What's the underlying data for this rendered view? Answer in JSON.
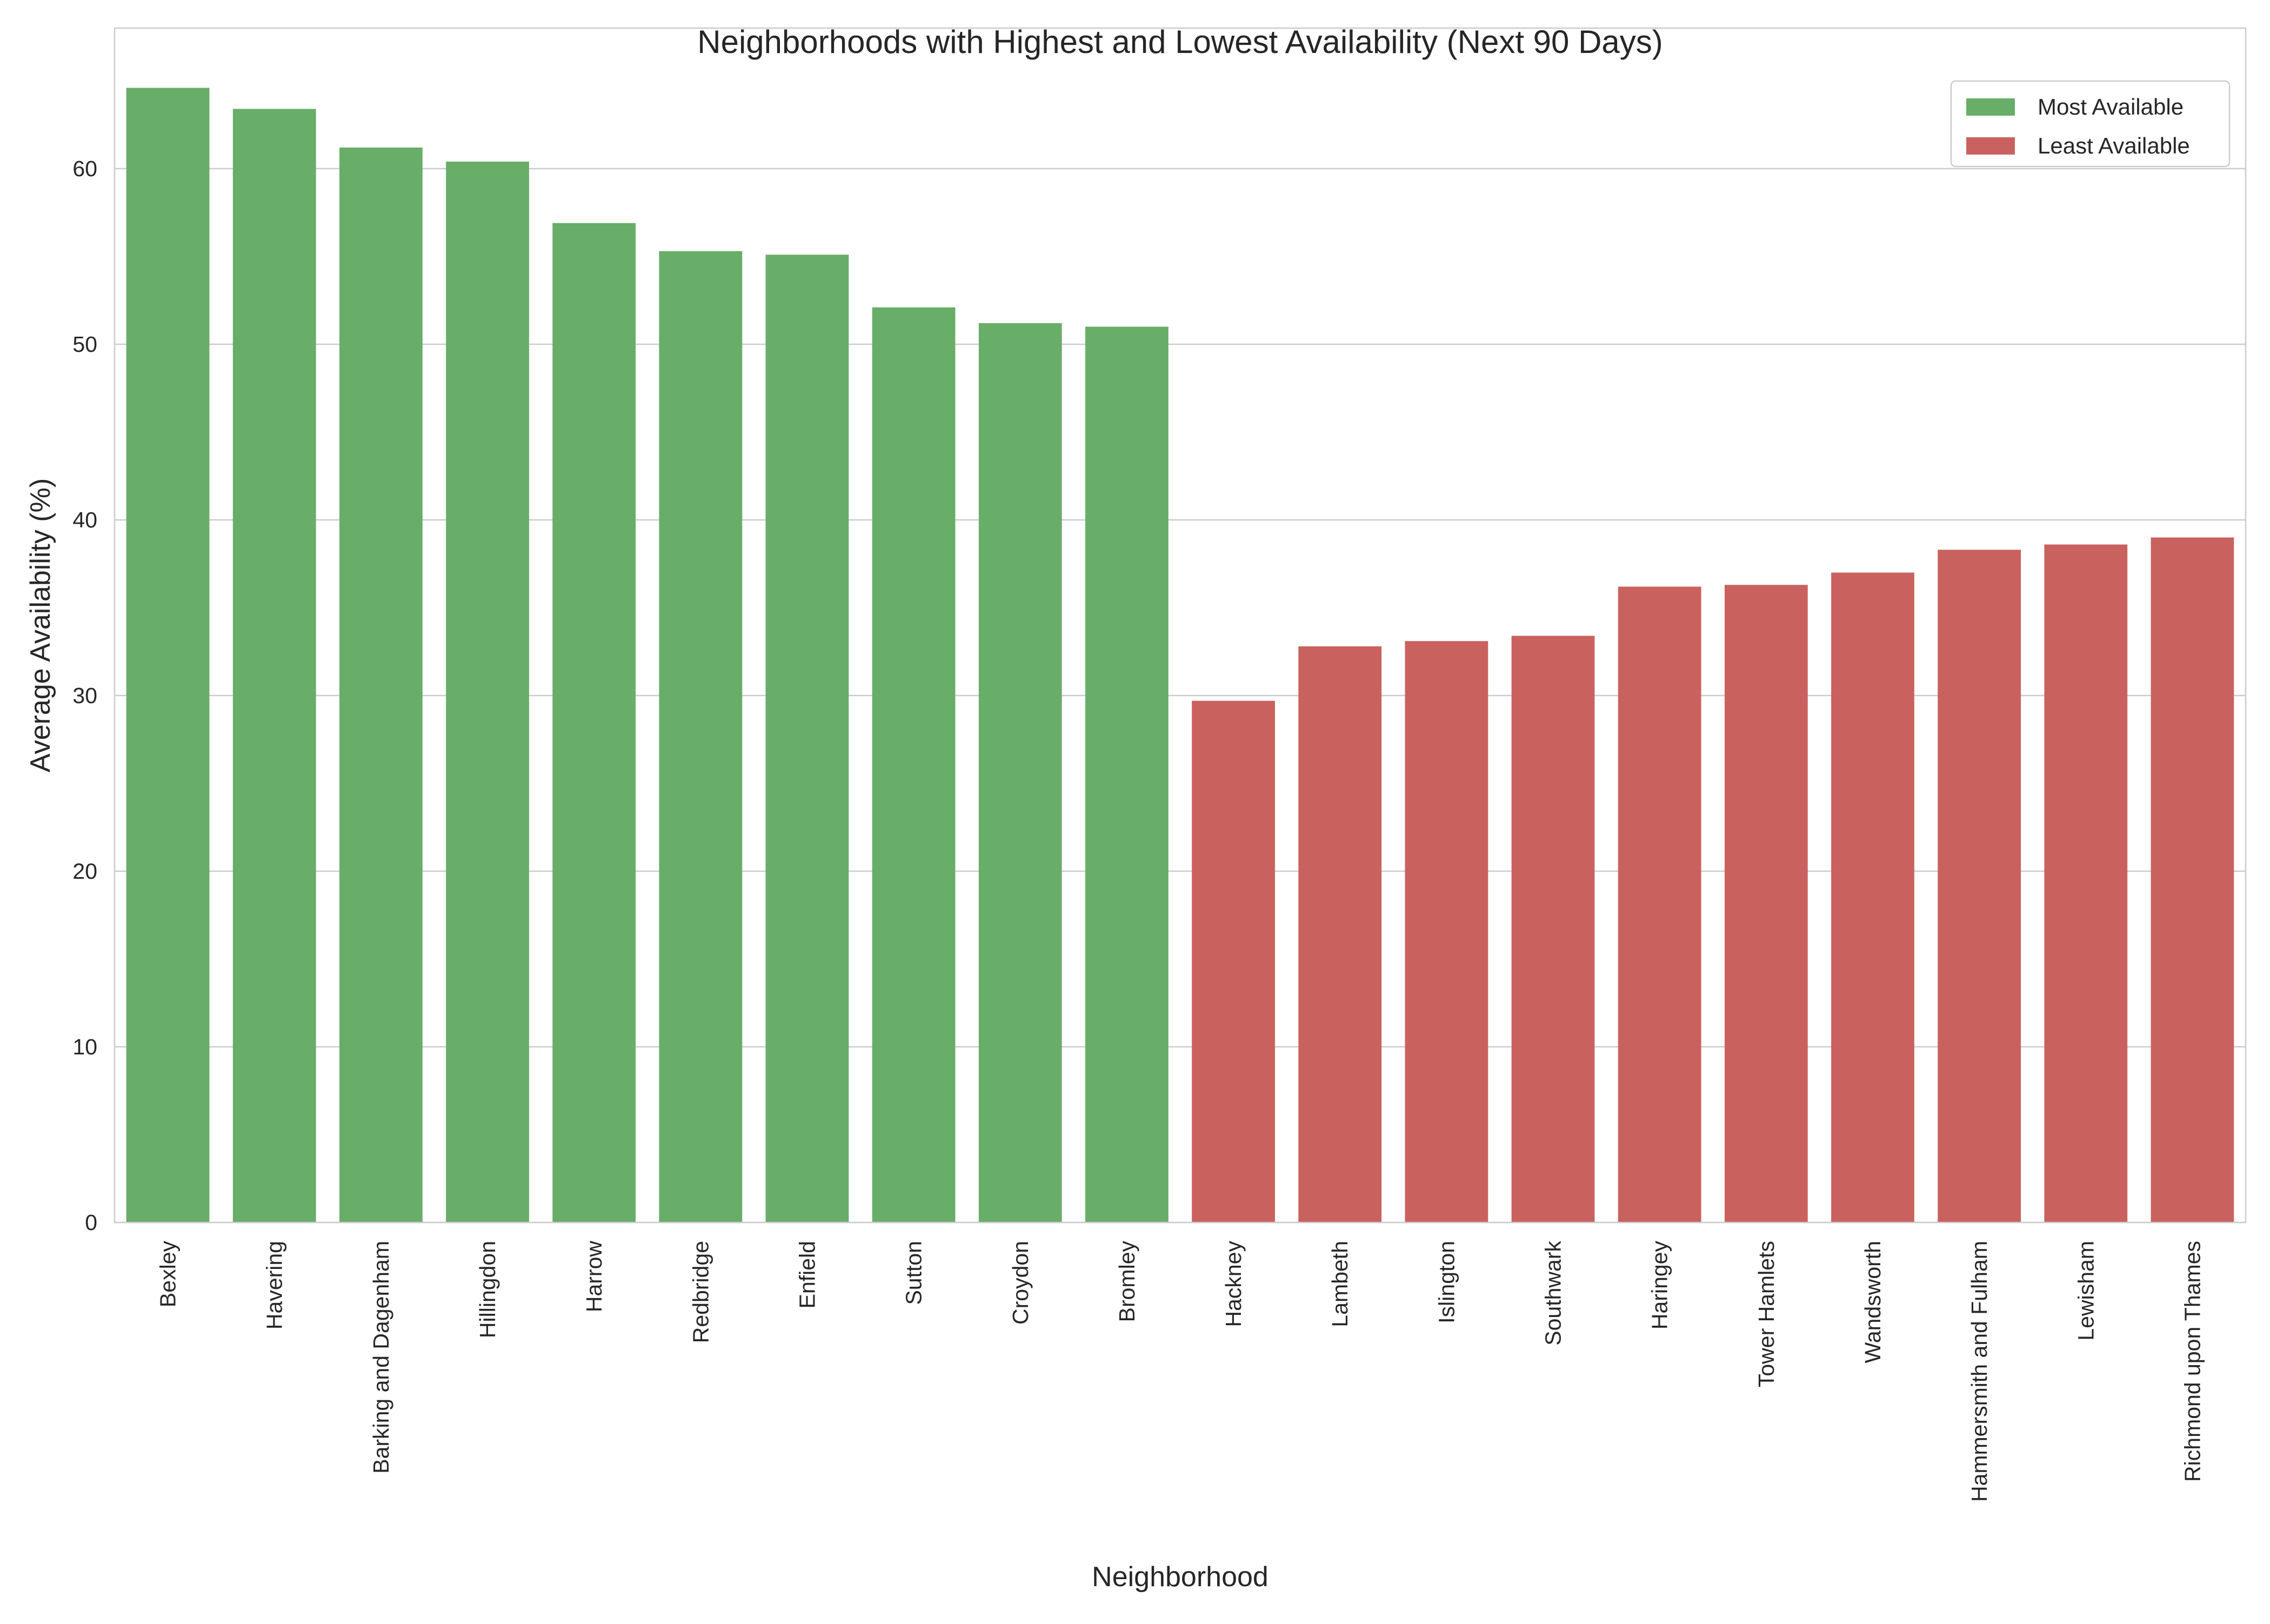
{
  "chart_data": {
    "type": "bar",
    "title": "Neighborhoods with Highest and Lowest Availability (Next 90 Days)",
    "xlabel": "Neighborhood",
    "ylabel": "Average Availability (%)",
    "ylim": [
      0,
      68
    ],
    "yticks": [
      0,
      10,
      20,
      30,
      40,
      50,
      60
    ],
    "grid": "horizontal",
    "legend_position": "top-right",
    "colors": {
      "most": "#68ad68",
      "least": "#c9625f"
    },
    "series": [
      {
        "name": "Most Available",
        "group": "most",
        "categories": [
          "Bexley",
          "Havering",
          "Barking and Dagenham",
          "Hillingdon",
          "Harrow",
          "Redbridge",
          "Enfield",
          "Sutton",
          "Croydon",
          "Bromley"
        ],
        "values": [
          64.6,
          63.4,
          61.2,
          60.4,
          56.9,
          55.3,
          55.1,
          52.1,
          51.2,
          51.0
        ]
      },
      {
        "name": "Least Available",
        "group": "least",
        "categories": [
          "Hackney",
          "Lambeth",
          "Islington",
          "Southwark",
          "Haringey",
          "Tower Hamlets",
          "Wandsworth",
          "Hammersmith and Fulham",
          "Lewisham",
          "Richmond upon Thames"
        ],
        "values": [
          29.7,
          32.8,
          33.1,
          33.4,
          36.2,
          36.3,
          37.0,
          38.3,
          38.6,
          39.0
        ]
      }
    ]
  }
}
